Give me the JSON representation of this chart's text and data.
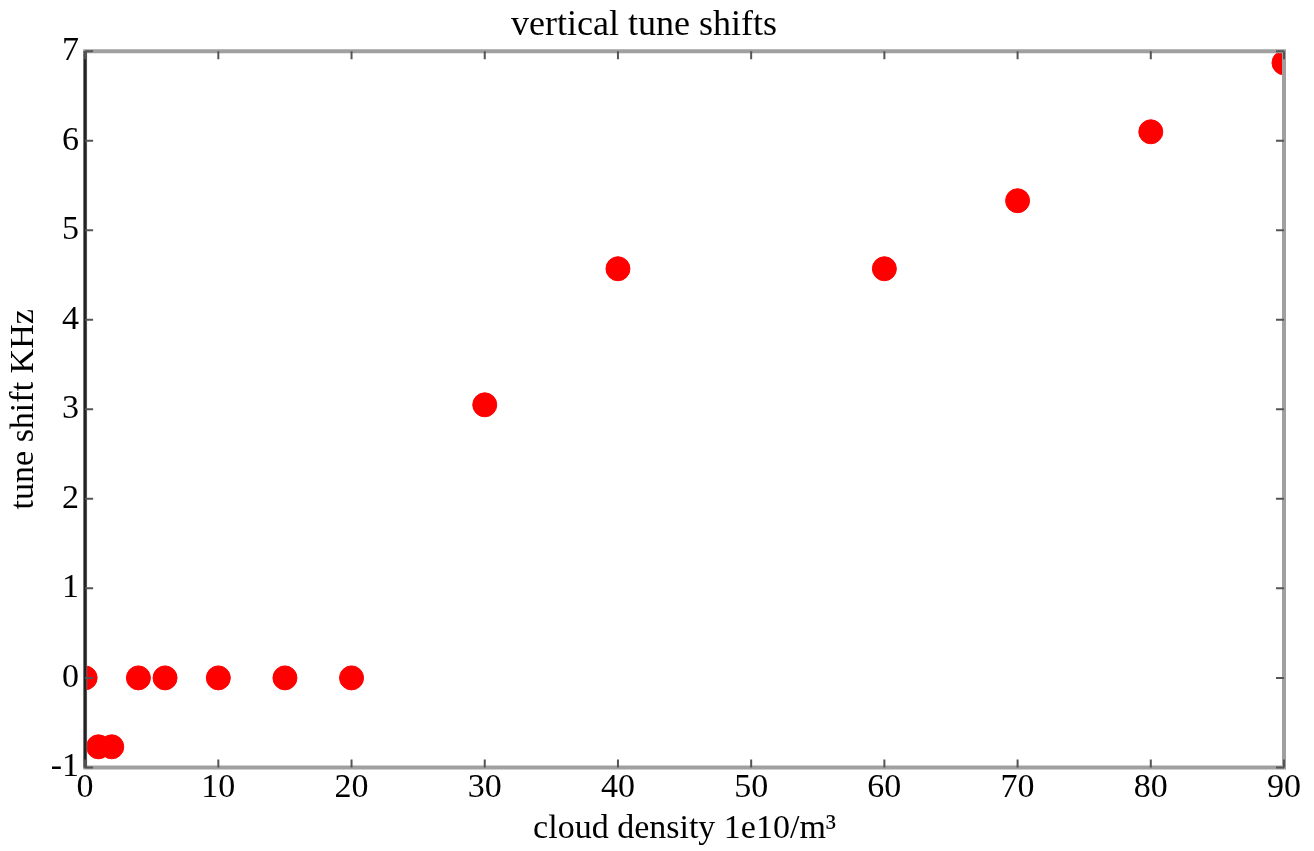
{
  "chart_data": {
    "type": "scatter",
    "title": "vertical tune shifts",
    "xlabel": "cloud density 1e10/m³",
    "ylabel": "tune shift KHz",
    "x": [
      0,
      1,
      2,
      4,
      6,
      10,
      15,
      20,
      30,
      40,
      60,
      70,
      80,
      90
    ],
    "series": [
      {
        "color": "#ff0000",
        "values": [
          0,
          -0.77,
          -0.77,
          0,
          0,
          0,
          0,
          0,
          3.05,
          4.57,
          4.57,
          5.33,
          6.1,
          6.87
        ]
      }
    ],
    "xlim": [
      0,
      90
    ],
    "xticks": [
      0,
      10,
      20,
      30,
      40,
      50,
      60,
      70,
      80,
      90
    ],
    "ylim": [
      -1,
      7
    ],
    "yticks": [
      -1,
      0,
      1,
      2,
      3,
      4,
      5,
      6,
      7
    ],
    "grid": false,
    "legend": false,
    "marker": "circle"
  }
}
